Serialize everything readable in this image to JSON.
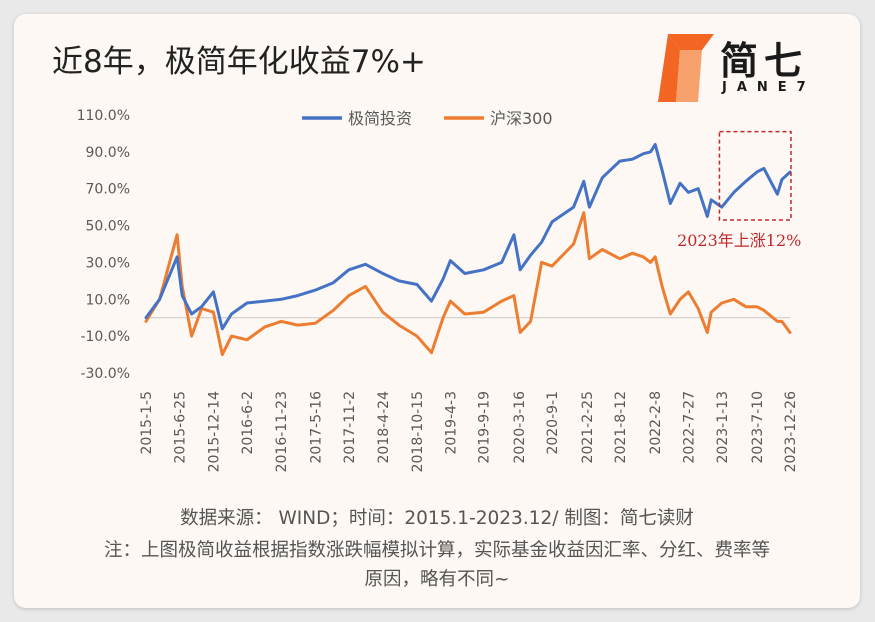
{
  "header": {
    "title": "近8年，极简年化收益7%+",
    "logo_text": "简七",
    "logo_sub": "JANE7"
  },
  "colors": {
    "series_blue": "#4472c4",
    "series_orange": "#ed7d31",
    "annotation": "#c0282d",
    "logo_orange": "#f26522"
  },
  "chart_data": {
    "type": "line",
    "ylim": [
      -30,
      110
    ],
    "y_ticks": [
      "110.0%",
      "90.0%",
      "70.0%",
      "50.0%",
      "30.0%",
      "10.0%",
      "-10.0%",
      "-30.0%"
    ],
    "x_ticks": [
      "2015-1-5",
      "2015-6-25",
      "2015-12-14",
      "2016-6-2",
      "2016-11-23",
      "2017-5-16",
      "2017-11-2",
      "2018-4-24",
      "2018-10-15",
      "2019-4-3",
      "2019-9-19",
      "2020-3-16",
      "2020-9-1",
      "2021-2-25",
      "2021-8-12",
      "2022-2-8",
      "2022-7-27",
      "2023-1-13",
      "2023-7-10",
      "2023-12-26"
    ],
    "legend_position": "top",
    "grid": false,
    "series": [
      {
        "name": "极简投资",
        "x": [
          "2015-1-5",
          "2015-3-15",
          "2015-6-12",
          "2015-7-8",
          "2015-8-25",
          "2015-10-15",
          "2015-12-14",
          "2016-1-28",
          "2016-3-15",
          "2016-6-2",
          "2016-9-1",
          "2016-11-23",
          "2017-2-15",
          "2017-5-16",
          "2017-8-15",
          "2017-11-2",
          "2018-1-26",
          "2018-4-24",
          "2018-7-15",
          "2018-10-15",
          "2018-12-28",
          "2019-2-25",
          "2019-4-3",
          "2019-6-15",
          "2019-9-19",
          "2019-12-20",
          "2020-2-20",
          "2020-3-23",
          "2020-5-15",
          "2020-7-10",
          "2020-9-1",
          "2020-12-20",
          "2021-2-10",
          "2021-3-10",
          "2021-5-15",
          "2021-8-12",
          "2021-10-15",
          "2021-12-10",
          "2022-1-15",
          "2022-2-8",
          "2022-3-15",
          "2022-4-26",
          "2022-6-15",
          "2022-7-27",
          "2022-9-15",
          "2022-10-31",
          "2022-11-20",
          "2023-1-13",
          "2023-3-15",
          "2023-5-15",
          "2023-7-10",
          "2023-8-15",
          "2023-10-23",
          "2023-11-15",
          "2023-12-26"
        ],
        "y": [
          0,
          10,
          33,
          12,
          2,
          6,
          14,
          -6,
          2,
          8,
          9,
          10,
          12,
          15,
          19,
          26,
          29,
          24,
          20,
          18,
          9,
          21,
          31,
          24,
          26,
          30,
          45,
          26,
          34,
          41,
          52,
          60,
          74,
          60,
          76,
          85,
          86,
          89,
          90,
          94,
          80,
          62,
          73,
          68,
          70,
          55,
          64,
          60,
          68,
          74,
          79,
          81,
          67,
          75,
          79
        ]
      },
      {
        "name": "沪深300",
        "x": [
          "2015-1-5",
          "2015-3-15",
          "2015-6-12",
          "2015-7-8",
          "2015-8-25",
          "2015-10-15",
          "2015-12-14",
          "2016-1-28",
          "2016-3-15",
          "2016-6-2",
          "2016-9-1",
          "2016-11-23",
          "2017-2-15",
          "2017-5-16",
          "2017-8-15",
          "2017-11-2",
          "2018-1-26",
          "2018-4-24",
          "2018-7-15",
          "2018-10-15",
          "2018-12-28",
          "2019-2-25",
          "2019-4-3",
          "2019-6-15",
          "2019-9-19",
          "2019-12-20",
          "2020-2-20",
          "2020-3-23",
          "2020-5-15",
          "2020-7-10",
          "2020-9-1",
          "2020-12-20",
          "2021-2-10",
          "2021-3-10",
          "2021-5-15",
          "2021-8-12",
          "2021-10-15",
          "2021-12-10",
          "2022-1-15",
          "2022-2-8",
          "2022-3-15",
          "2022-4-26",
          "2022-6-15",
          "2022-7-27",
          "2022-9-15",
          "2022-10-31",
          "2022-11-20",
          "2023-1-13",
          "2023-3-15",
          "2023-5-15",
          "2023-7-10",
          "2023-8-15",
          "2023-10-23",
          "2023-11-15",
          "2023-12-26"
        ],
        "y": [
          -2,
          10,
          45,
          17,
          -10,
          5,
          3,
          -20,
          -10,
          -12,
          -5,
          -2,
          -4,
          -3,
          4,
          12,
          17,
          3,
          -4,
          -10,
          -19,
          0,
          9,
          2,
          3,
          9,
          12,
          -8,
          -2,
          30,
          28,
          40,
          57,
          32,
          37,
          32,
          35,
          33,
          30,
          33,
          17,
          2,
          10,
          14,
          5,
          -8,
          3,
          8,
          10,
          6,
          6,
          4,
          -2,
          -2,
          -8
        ]
      }
    ],
    "annotation": {
      "label": "2023年上涨12%",
      "x_range": [
        "2023-1-1",
        "2023-12-31"
      ],
      "y_range": [
        53,
        101
      ]
    }
  },
  "footer": {
    "source": "数据来源： WIND；时间：2015.1-2023.12/ 制图：简七读财",
    "note_line1": "注：上图极简收益根据指数涨跌幅模拟计算，实际基金收益因汇率、分红、费率等",
    "note_line2": "原因，略有不同~"
  }
}
